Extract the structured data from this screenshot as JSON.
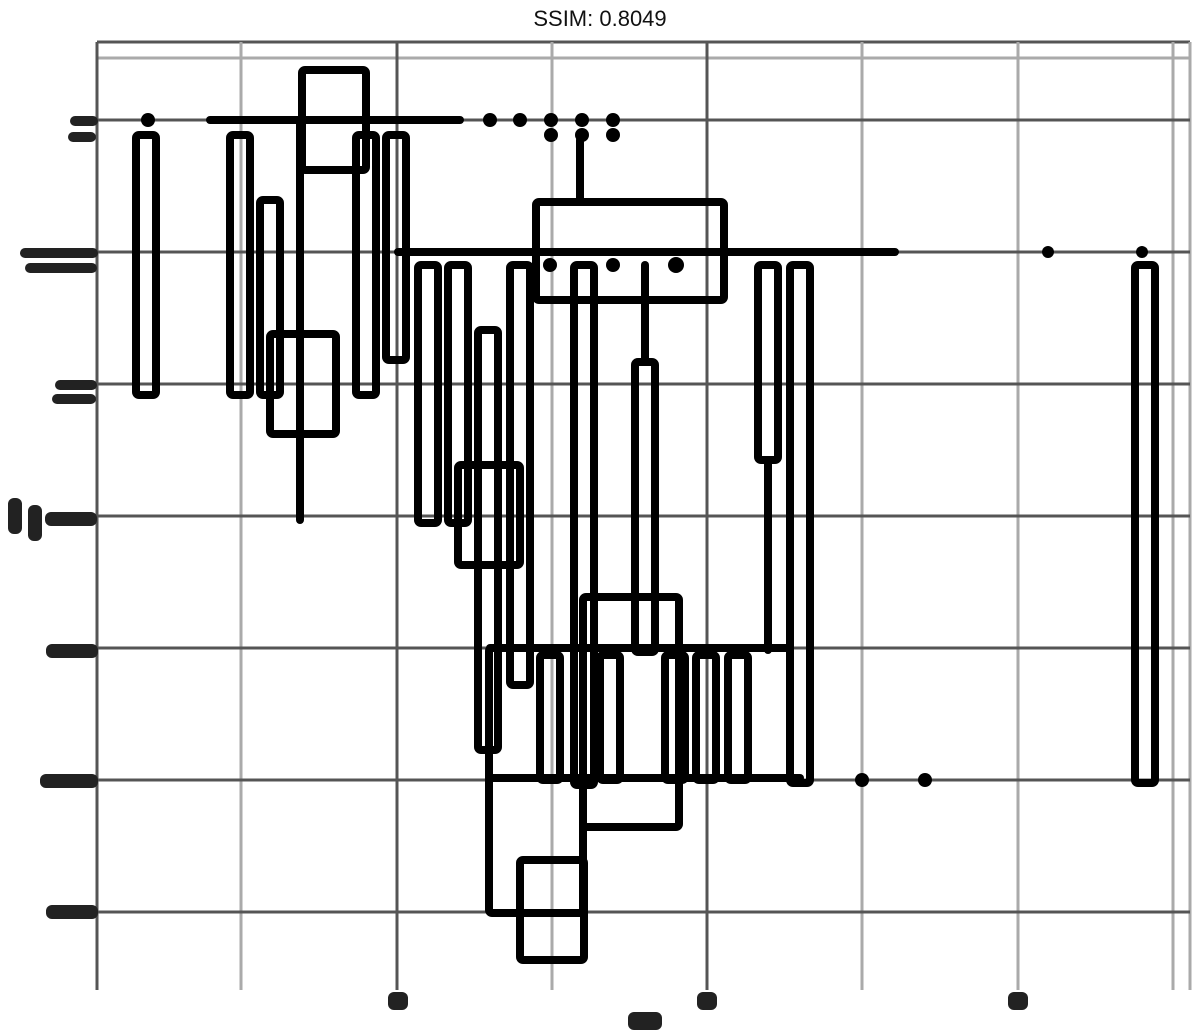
{
  "header": {
    "title": "SSIM: 0.8049"
  }
}
